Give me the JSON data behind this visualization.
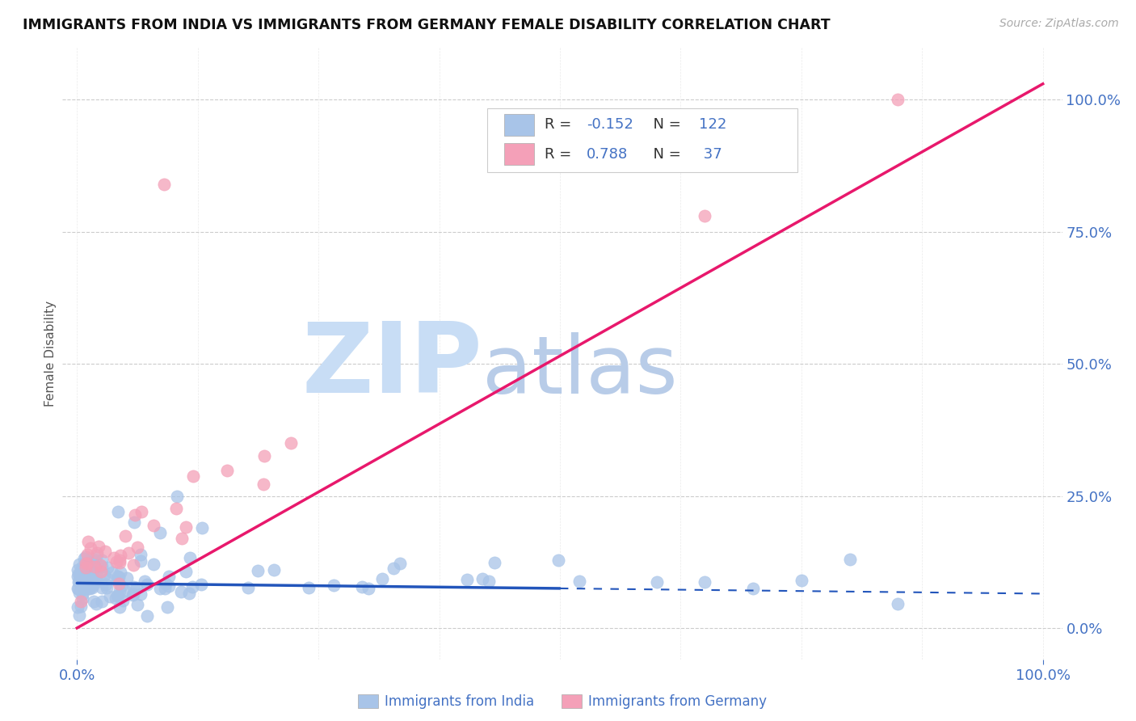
{
  "title": "IMMIGRANTS FROM INDIA VS IMMIGRANTS FROM GERMANY FEMALE DISABILITY CORRELATION CHART",
  "source": "Source: ZipAtlas.com",
  "ylabel": "Female Disability",
  "xlabel_india": "Immigrants from India",
  "xlabel_germany": "Immigrants from Germany",
  "watermark_zip": "ZIP",
  "watermark_atlas": "atlas",
  "india_R": -0.152,
  "india_N": 122,
  "germany_R": 0.788,
  "germany_N": 37,
  "india_color": "#a8c4e8",
  "germany_color": "#f4a0b8",
  "india_line_color": "#2255bb",
  "germany_line_color": "#e8186c",
  "background_color": "#ffffff",
  "grid_color": "#cccccc",
  "title_color": "#111111",
  "source_color": "#aaaaaa",
  "axis_color": "#4472c4",
  "legend_label_color": "#111111",
  "legend_value_color": "#4472c4",
  "watermark_zip_color": "#c8ddf5",
  "watermark_atlas_color": "#b8cce8"
}
